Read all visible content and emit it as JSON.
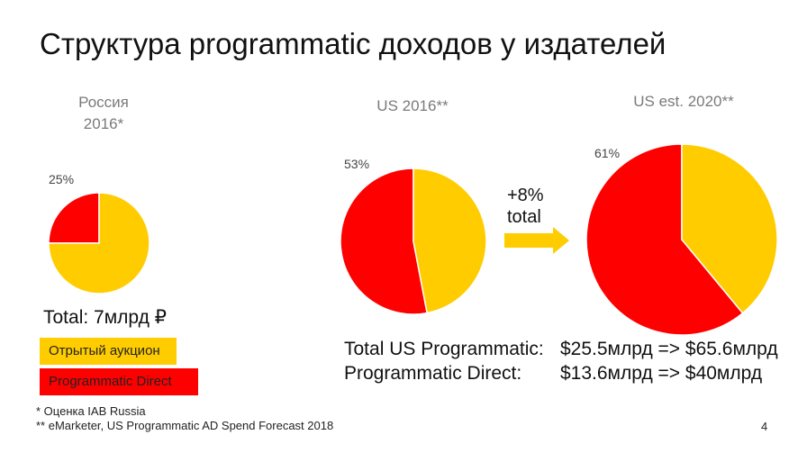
{
  "slide": {
    "title": "Структура programmatic доходов у издателей",
    "total_ru": "Total: 7млрд ₽",
    "arrow_label_line1": "+8%",
    "arrow_label_line2": "total",
    "summary": [
      {
        "label": "Total US Programmatic:",
        "value": "$25.5млрд => $65.6млрд"
      },
      {
        "label": "Programmatic Direct:",
        "value": "$13.6млрд => $40млрд"
      }
    ],
    "footnotes": [
      "* Оценка IAB Russia",
      "** eMarketer, US Programmatic AD Spend Forecast 2018"
    ],
    "page_number": "4"
  },
  "legend": {
    "auction": "Отрытый аукцион",
    "direct": "Programmatic Direct"
  },
  "colors": {
    "auction": "#ffcc00",
    "direct": "#ff0000"
  },
  "chart_data": [
    {
      "type": "pie",
      "title_line1": "Россия",
      "title_line2": "2016*",
      "slices": [
        {
          "name": "Programmatic Direct",
          "value": 25,
          "label": "25%"
        },
        {
          "name": "Отрытый аукцион",
          "value": 75
        }
      ]
    },
    {
      "type": "pie",
      "title_line1": "US 2016**",
      "slices": [
        {
          "name": "Programmatic Direct",
          "value": 53,
          "label": "53%"
        },
        {
          "name": "Отрытый аукцион",
          "value": 47
        }
      ]
    },
    {
      "type": "pie",
      "title_line1": "US est. 2020**",
      "slices": [
        {
          "name": "Programmatic Direct",
          "value": 61,
          "label": "61%"
        },
        {
          "name": "Отрытый аукцион",
          "value": 39
        }
      ]
    }
  ]
}
